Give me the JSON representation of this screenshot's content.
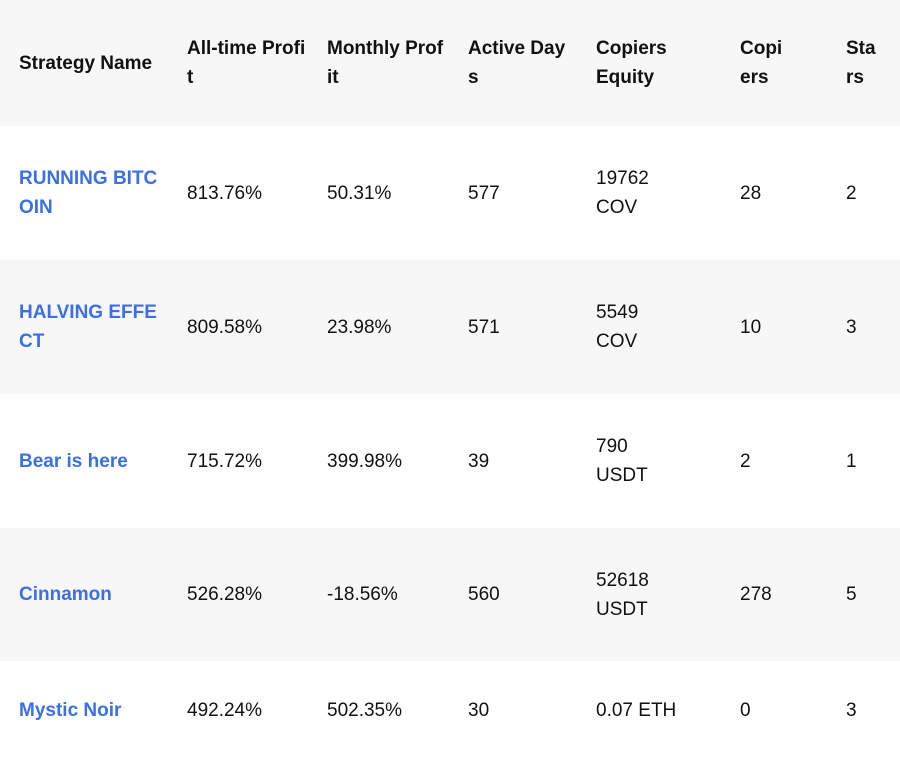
{
  "headers": {
    "strategy_name": "Strategy Name",
    "all_time_profit": "All-time Profit",
    "monthly_profit": "Monthly Profit",
    "active_days": "Active Days",
    "copiers_equity": "Copiers Equity",
    "copiers": "Copiers",
    "stars": "Stars"
  },
  "rows": [
    {
      "name": "RUNNING BITCOIN",
      "all_time_profit": "813.76%",
      "monthly_profit": "50.31%",
      "active_days": "577",
      "equity_amount": "19762",
      "equity_unit": "COV",
      "copiers": "28",
      "stars": "2"
    },
    {
      "name": "HALVING EFFECT",
      "all_time_profit": "809.58%",
      "monthly_profit": "23.98%",
      "active_days": "571",
      "equity_amount": "5549",
      "equity_unit": "COV",
      "copiers": "10",
      "stars": "3"
    },
    {
      "name": "Bear is here",
      "all_time_profit": "715.72%",
      "monthly_profit": "399.98%",
      "active_days": "39",
      "equity_amount": "790",
      "equity_unit": "USDT",
      "copiers": "2",
      "stars": "1"
    },
    {
      "name": "Cinnamon",
      "all_time_profit": "526.28%",
      "monthly_profit": "-18.56%",
      "active_days": "560",
      "equity_amount": "52618",
      "equity_unit": "USDT",
      "copiers": "278",
      "stars": "5"
    },
    {
      "name": "Mystic Noir",
      "all_time_profit": "492.24%",
      "monthly_profit": "502.35%",
      "active_days": "30",
      "equity_amount": "0.07",
      "equity_unit": "ETH",
      "copiers": "0",
      "stars": "3"
    }
  ],
  "colors": {
    "link": "#3b6fe6",
    "header_bg": "#f7f7f7",
    "stripe_bg": "#f7f7f7",
    "row_bg": "#ffffff",
    "text": "#111111"
  }
}
